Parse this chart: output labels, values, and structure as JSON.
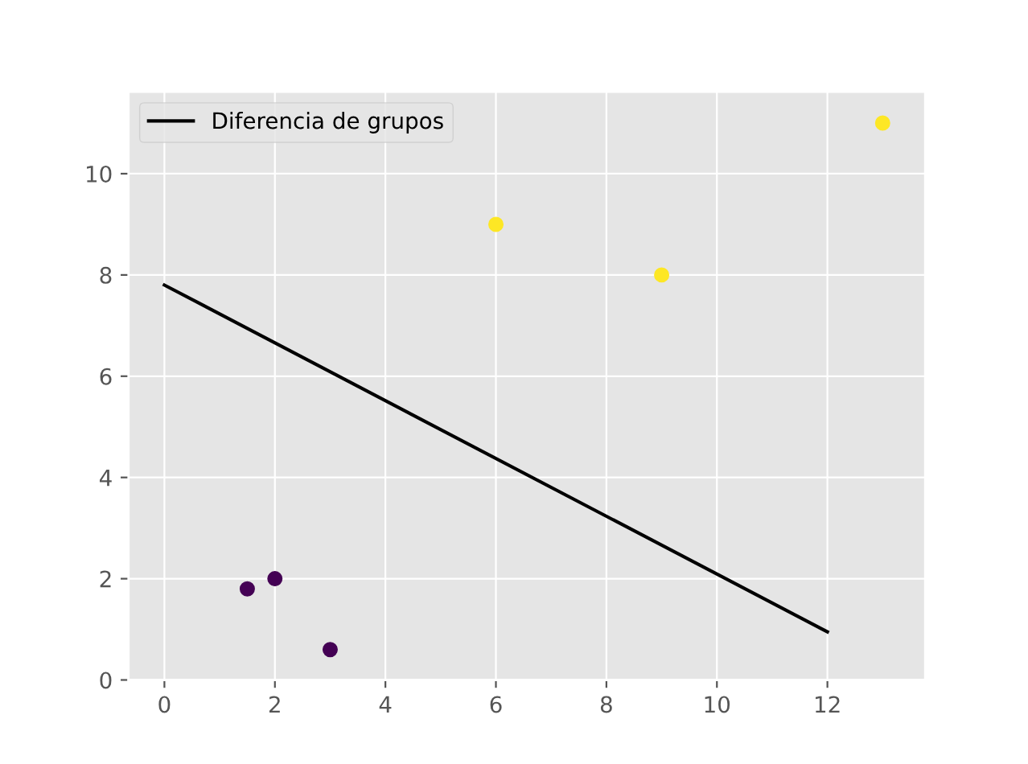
{
  "chart_data": {
    "type": "scatter",
    "series": [
      {
        "type": "line",
        "name": "Diferencia de grupos",
        "color": "#000000",
        "x": [
          0,
          12
        ],
        "values": [
          7.8,
          0.95
        ],
        "marker": "none"
      },
      {
        "color": "#440154",
        "x": [
          1.5,
          2,
          3
        ],
        "values": [
          1.8,
          2,
          0.6
        ],
        "marker": "circle"
      },
      {
        "color": "#fde725",
        "x": [
          6,
          9,
          13
        ],
        "values": [
          9,
          8,
          11
        ],
        "marker": "circle"
      }
    ],
    "xlim": [
      -0.65,
      13.77
    ],
    "ylim": [
      0,
      11.62
    ],
    "xticks": [
      0,
      2,
      4,
      6,
      8,
      10,
      12
    ],
    "yticks": [
      0,
      2,
      4,
      6,
      8,
      10
    ],
    "grid": true,
    "legend": "upper left"
  }
}
